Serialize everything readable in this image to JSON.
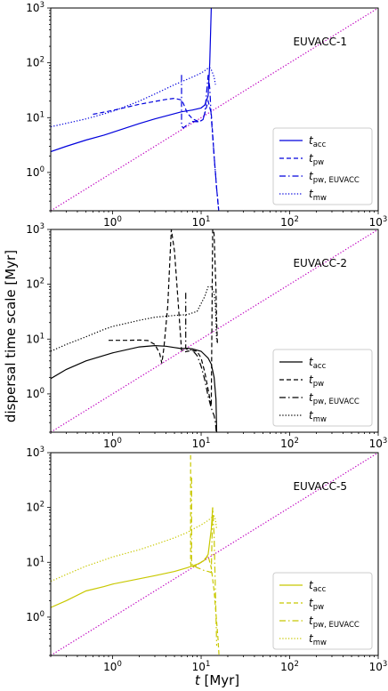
{
  "figure": {
    "ylabel": "dispersal time scale [Myr]",
    "xlabel_main": "t",
    "xlabel_unit": " [Myr]"
  },
  "colors": {
    "identity": "#bf00bf",
    "panel1": "#0000dd",
    "panel2": "#000000",
    "panel3": "#c8c800"
  },
  "chart_data": [
    {
      "type": "line",
      "title": "EUVACC-1",
      "xscale": "log",
      "yscale": "log",
      "xlim": [
        0.2,
        1000
      ],
      "ylim": [
        0.2,
        1000
      ],
      "x_ticks": [
        1,
        10,
        100,
        1000
      ],
      "y_ticks": [
        1,
        10,
        100,
        1000
      ],
      "legend_position": "lower-right",
      "legend": [
        {
          "sym": "t",
          "sub": "acc",
          "style": "solid"
        },
        {
          "sym": "t",
          "sub": "pw",
          "style": "dashed"
        },
        {
          "sym": "t",
          "sub": "pw, EUVACC",
          "style": "dashdot"
        },
        {
          "sym": "t",
          "sub": "mw",
          "style": "dotted"
        }
      ],
      "series": [
        {
          "style": "solid",
          "x": [
            0.2,
            0.3,
            0.5,
            0.8,
            1,
            2,
            3,
            5,
            6,
            8,
            10,
            11,
            12,
            12.5,
            13
          ],
          "y": [
            2.4,
            3.0,
            3.9,
            4.8,
            5.4,
            7.8,
            9.5,
            11.8,
            12.8,
            13.8,
            15,
            17,
            25,
            100,
            1000
          ]
        },
        {
          "style": "dashed",
          "x": [
            0.6,
            1,
            2,
            4,
            5,
            6,
            6.3,
            7,
            8,
            9.5,
            10.5,
            11,
            12,
            13,
            14,
            15,
            15.8
          ],
          "y": [
            11.5,
            13.5,
            17.5,
            21.5,
            22.5,
            21,
            18,
            12,
            9.5,
            8.4,
            9.2,
            12,
            20,
            12,
            2,
            0.5,
            0.2
          ]
        },
        {
          "style": "dashdot",
          "x": [
            6,
            6,
            6.3,
            7,
            8,
            9.5,
            10.5,
            11,
            12,
            12.5,
            13,
            14,
            15,
            15.8
          ],
          "y": [
            60,
            7,
            6.5,
            7.5,
            8.5,
            8.4,
            9.2,
            12,
            60,
            35,
            10,
            2,
            0.5,
            0.2
          ]
        },
        {
          "style": "dotted",
          "x": [
            0.2,
            0.5,
            1,
            2,
            3,
            5,
            8,
            10,
            11,
            12,
            12.5,
            13,
            14,
            14.5
          ],
          "y": [
            6.8,
            9.5,
            13,
            20,
            27,
            40,
            55,
            65,
            72,
            80,
            82,
            75,
            55,
            40
          ]
        }
      ]
    },
    {
      "type": "line",
      "title": "EUVACC-2",
      "xscale": "log",
      "yscale": "log",
      "xlim": [
        0.2,
        1000
      ],
      "ylim": [
        0.2,
        1000
      ],
      "x_ticks": [
        1,
        10,
        100,
        1000
      ],
      "y_ticks": [
        1,
        10,
        100,
        1000
      ],
      "legend_position": "lower-right",
      "legend": [
        {
          "sym": "t",
          "sub": "acc",
          "style": "solid"
        },
        {
          "sym": "t",
          "sub": "pw",
          "style": "dashed"
        },
        {
          "sym": "t",
          "sub": "pw, EUVACC",
          "style": "dashdot"
        },
        {
          "sym": "t",
          "sub": "mw",
          "style": "dotted"
        }
      ],
      "series": [
        {
          "style": "solid",
          "x": [
            0.2,
            0.3,
            0.5,
            1,
            2,
            3,
            4,
            5,
            6,
            7,
            8,
            10,
            12,
            13,
            14,
            14.7,
            15
          ],
          "y": [
            1.9,
            2.8,
            4,
            5.6,
            7.2,
            7.6,
            7.4,
            7,
            6.7,
            6.8,
            6.6,
            6,
            4.5,
            3.5,
            2,
            0.8,
            0.2
          ]
        },
        {
          "style": "dashed",
          "x": [
            0.9,
            1.5,
            2,
            2.5,
            3,
            3.4,
            3.6,
            3.8,
            4.2,
            4.6,
            5,
            6,
            6.5,
            7,
            8,
            9,
            10,
            11,
            12,
            13,
            13.5,
            13.8,
            14,
            14.3,
            14.7,
            15,
            15.3
          ],
          "y": [
            9.5,
            9.5,
            9.6,
            9.4,
            8,
            5.5,
            3.6,
            7,
            40,
            1000,
            400,
            6.3,
            5.8,
            6,
            6.2,
            6,
            4.5,
            2.5,
            1.2,
            0.6,
            1000,
            1000,
            800,
            300,
            80,
            20,
            8
          ]
        },
        {
          "style": "dashdot",
          "x": [
            6.7,
            6.7,
            6.9,
            7,
            8,
            9,
            10,
            11,
            12,
            13,
            14,
            14.5,
            14.8
          ],
          "y": [
            70,
            6.8,
            6.5,
            6.5,
            6.2,
            5,
            3.2,
            1.8,
            0.9,
            0.55,
            0.4,
            0.3,
            0.2
          ]
        },
        {
          "style": "dotted",
          "x": [
            0.2,
            0.3,
            0.5,
            0.8,
            1,
            2,
            3,
            5,
            7,
            9,
            11,
            12,
            13,
            14,
            14.5,
            15
          ],
          "y": [
            6,
            8,
            11,
            15,
            17,
            22,
            25,
            27,
            28,
            32,
            60,
            90,
            90,
            70,
            40,
            9
          ]
        }
      ]
    },
    {
      "type": "line",
      "title": "EUVACC-5",
      "xscale": "log",
      "yscale": "log",
      "xlim": [
        0.2,
        1000
      ],
      "ylim": [
        0.2,
        1000
      ],
      "x_ticks": [
        1,
        10,
        100,
        1000
      ],
      "y_ticks": [
        1,
        10,
        100,
        1000
      ],
      "legend_position": "lower-right",
      "legend": [
        {
          "sym": "t",
          "sub": "acc",
          "style": "solid"
        },
        {
          "sym": "t",
          "sub": "pw",
          "style": "dashed"
        },
        {
          "sym": "t",
          "sub": "pw, EUVACC",
          "style": "dashdot"
        },
        {
          "sym": "t",
          "sub": "mw",
          "style": "dotted"
        }
      ],
      "series": [
        {
          "style": "solid",
          "x": [
            0.2,
            0.3,
            0.5,
            0.8,
            1,
            2,
            3,
            5,
            7,
            9,
            10,
            11,
            12,
            13,
            13.5
          ],
          "y": [
            1.5,
            2,
            3,
            3.6,
            4,
            5,
            5.7,
            6.8,
            8,
            9.2,
            10,
            11,
            14,
            40,
            100
          ]
        },
        {
          "style": "dashed",
          "x": [
            7.6,
            7.6,
            7.7,
            7.8,
            8,
            9,
            10,
            11,
            12,
            13,
            14,
            14.5,
            15,
            15.5,
            15.9
          ],
          "y": [
            900,
            10,
            8.5,
            8,
            8.2,
            9,
            10,
            11.5,
            13,
            8,
            3,
            1.5,
            0.8,
            0.4,
            0.2
          ]
        },
        {
          "style": "dashdot",
          "x": [
            7.8,
            7.8,
            8,
            9,
            10,
            11,
            12,
            13,
            13.5,
            14,
            15
          ],
          "y": [
            350,
            9.5,
            9,
            8,
            7.5,
            7,
            6.8,
            6.5,
            100,
            30,
            0.3
          ]
        },
        {
          "style": "dotted",
          "x": [
            0.2,
            0.3,
            0.5,
            0.8,
            1,
            2,
            3,
            5,
            7,
            8,
            10,
            12,
            13,
            14,
            14.5,
            15
          ],
          "y": [
            4.5,
            6,
            8.5,
            11,
            12.5,
            17,
            21,
            28,
            35,
            40,
            48,
            58,
            65,
            70,
            60,
            40
          ]
        }
      ]
    }
  ]
}
